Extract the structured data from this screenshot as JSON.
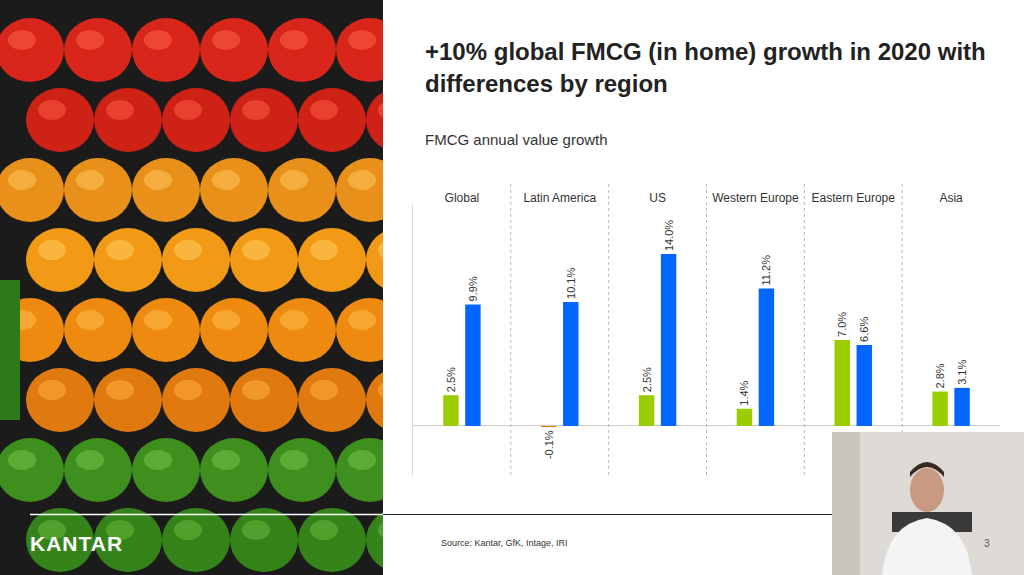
{
  "brand": "KANTAR",
  "page_number": "3",
  "chart_data": {
    "type": "bar",
    "title": "+10% global FMCG (in home) growth in 2020 with differences by region",
    "subtitle": "FMCG annual value growth",
    "source": "Source: Kantar, GfK, Intage, IRI",
    "categories": [
      "Global",
      "Latin America",
      "US",
      "Western Europe",
      "Eastern Europe",
      "Asia"
    ],
    "series": [
      {
        "color": "#9acd00",
        "colors": [
          "#9acd00",
          "#f07c00",
          "#9acd00",
          "#9acd00",
          "#9acd00",
          "#9acd00"
        ],
        "values": [
          2.5,
          -0.1,
          2.5,
          1.4,
          7.0,
          2.8
        ],
        "value_labels": [
          "2.5%",
          "-0.1%",
          "2.5%",
          "1.4%",
          "7.0%",
          "2.8%"
        ]
      },
      {
        "color": "#0066ff",
        "values": [
          9.9,
          10.1,
          14.0,
          11.2,
          6.6,
          3.1
        ],
        "value_labels": [
          "9.9%",
          "10.1%",
          "14.0%",
          "11.2%",
          "6.6%",
          "3.1%"
        ]
      }
    ],
    "ylim": [
      -4,
      18
    ],
    "grid": false,
    "data_labels": true,
    "tick_labels": "x"
  }
}
